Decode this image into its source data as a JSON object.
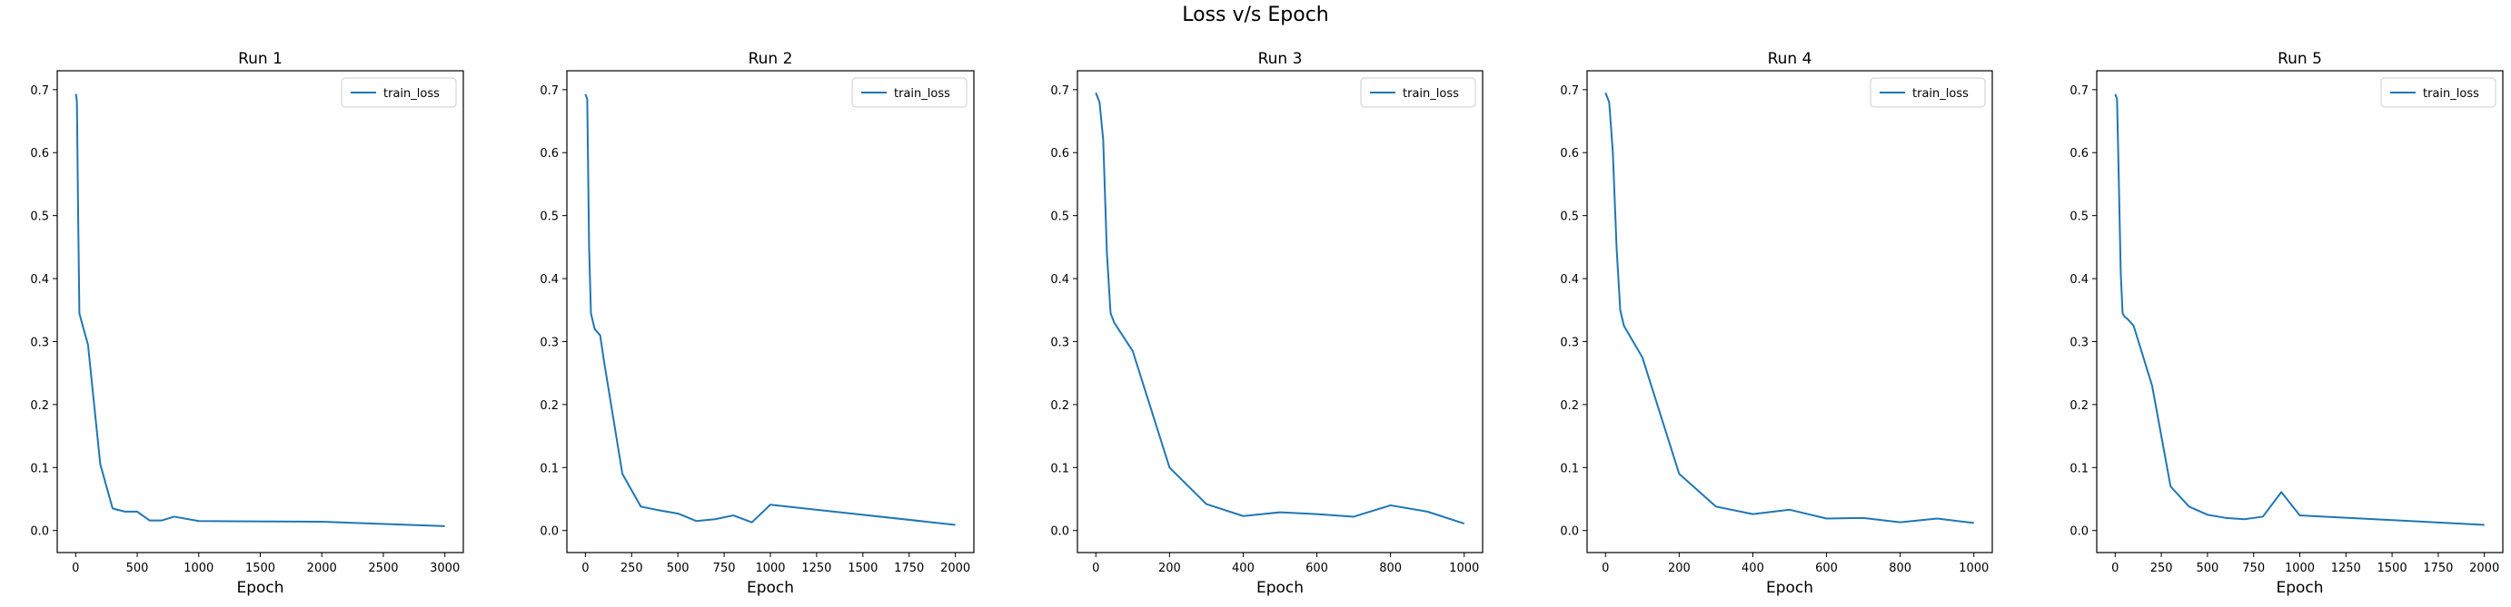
{
  "figure": {
    "suptitle": "Loss v/s Epoch",
    "line_color": "#1f77b4"
  },
  "chart_data": [
    {
      "type": "line",
      "title": "Run 1",
      "xlabel": "Epoch",
      "ylabel": "",
      "xlim": [
        -150,
        3150
      ],
      "ylim": [
        -0.035,
        0.73
      ],
      "xticks": [
        0,
        500,
        1000,
        1500,
        2000,
        2500,
        3000
      ],
      "yticks": [
        0.0,
        0.1,
        0.2,
        0.3,
        0.4,
        0.5,
        0.6,
        0.7
      ],
      "legend": "top-right",
      "series": [
        {
          "name": "train_loss",
          "x": [
            0,
            5,
            10,
            20,
            30,
            50,
            100,
            200,
            300,
            400,
            500,
            600,
            700,
            800,
            1000,
            2000,
            3000
          ],
          "y": [
            0.693,
            0.69,
            0.68,
            0.5,
            0.345,
            0.33,
            0.295,
            0.105,
            0.035,
            0.03,
            0.03,
            0.016,
            0.016,
            0.022,
            0.015,
            0.014,
            0.007
          ]
        }
      ]
    },
    {
      "type": "line",
      "title": "Run 2",
      "xlabel": "Epoch",
      "ylabel": "",
      "xlim": [
        -100,
        2100
      ],
      "ylim": [
        -0.035,
        0.73
      ],
      "xticks": [
        0,
        250,
        500,
        750,
        1000,
        1250,
        1500,
        1750,
        2000
      ],
      "yticks": [
        0.0,
        0.1,
        0.2,
        0.3,
        0.4,
        0.5,
        0.6,
        0.7
      ],
      "legend": "top-right",
      "series": [
        {
          "name": "train_loss",
          "x": [
            0,
            10,
            20,
            30,
            50,
            80,
            100,
            200,
            300,
            400,
            500,
            600,
            700,
            800,
            900,
            1000,
            2000
          ],
          "y": [
            0.693,
            0.685,
            0.45,
            0.345,
            0.32,
            0.31,
            0.27,
            0.09,
            0.038,
            0.032,
            0.027,
            0.015,
            0.018,
            0.024,
            0.013,
            0.041,
            0.009
          ]
        }
      ]
    },
    {
      "type": "line",
      "title": "Run 3",
      "xlabel": "Epoch",
      "ylabel": "",
      "xlim": [
        -50,
        1050
      ],
      "ylim": [
        -0.035,
        0.73
      ],
      "xticks": [
        0,
        200,
        400,
        600,
        800,
        1000
      ],
      "yticks": [
        0.0,
        0.1,
        0.2,
        0.3,
        0.4,
        0.5,
        0.6,
        0.7
      ],
      "legend": "top-right",
      "series": [
        {
          "name": "train_loss",
          "x": [
            0,
            10,
            20,
            30,
            40,
            50,
            100,
            200,
            300,
            400,
            500,
            600,
            700,
            800,
            900,
            1000
          ],
          "y": [
            0.695,
            0.68,
            0.62,
            0.44,
            0.345,
            0.33,
            0.285,
            0.1,
            0.042,
            0.023,
            0.029,
            0.026,
            0.022,
            0.04,
            0.03,
            0.011
          ]
        }
      ]
    },
    {
      "type": "line",
      "title": "Run 4",
      "xlabel": "Epoch",
      "ylabel": "",
      "xlim": [
        -50,
        1050
      ],
      "ylim": [
        -0.035,
        0.73
      ],
      "xticks": [
        0,
        200,
        400,
        600,
        800,
        1000
      ],
      "yticks": [
        0.0,
        0.1,
        0.2,
        0.3,
        0.4,
        0.5,
        0.6,
        0.7
      ],
      "legend": "top-right",
      "series": [
        {
          "name": "train_loss",
          "x": [
            0,
            10,
            20,
            30,
            40,
            50,
            100,
            200,
            300,
            400,
            500,
            600,
            700,
            800,
            900,
            1000
          ],
          "y": [
            0.695,
            0.68,
            0.6,
            0.45,
            0.35,
            0.325,
            0.275,
            0.09,
            0.038,
            0.026,
            0.033,
            0.019,
            0.02,
            0.013,
            0.019,
            0.012
          ]
        }
      ]
    },
    {
      "type": "line",
      "title": "Run 5",
      "xlabel": "Epoch",
      "ylabel": "",
      "xlim": [
        -100,
        2100
      ],
      "ylim": [
        -0.035,
        0.73
      ],
      "xticks": [
        0,
        250,
        500,
        750,
        1000,
        1250,
        1500,
        1750,
        2000
      ],
      "yticks": [
        0.0,
        0.1,
        0.2,
        0.3,
        0.4,
        0.5,
        0.6,
        0.7
      ],
      "legend": "top-right",
      "series": [
        {
          "name": "train_loss",
          "x": [
            0,
            10,
            20,
            30,
            40,
            50,
            70,
            100,
            200,
            300,
            400,
            500,
            600,
            700,
            800,
            900,
            1000,
            2000
          ],
          "y": [
            0.693,
            0.685,
            0.55,
            0.41,
            0.345,
            0.34,
            0.335,
            0.325,
            0.23,
            0.07,
            0.038,
            0.025,
            0.02,
            0.018,
            0.022,
            0.061,
            0.024,
            0.009
          ]
        }
      ]
    }
  ]
}
